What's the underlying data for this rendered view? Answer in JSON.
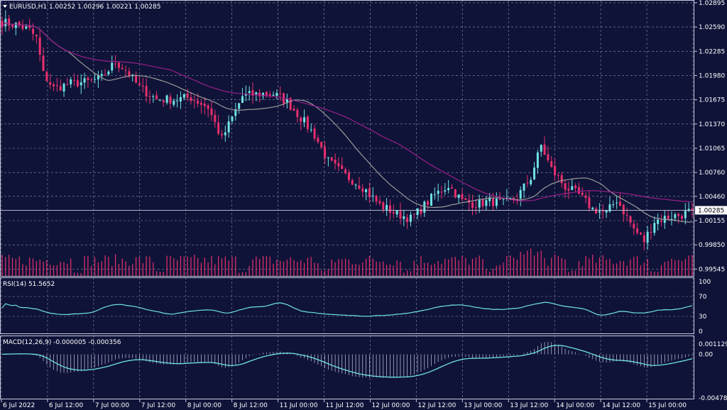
{
  "colors": {
    "background": "#0f1338",
    "grid": "#8a8fb0",
    "frame": "#c8cbe0",
    "bull": "#6fe3e3",
    "bear": "#e8306d",
    "ma_fast": "#9a9a9a",
    "ma_slow": "#9a1f8a",
    "volume": "#e8306d",
    "indicator": "#6fe3e3",
    "price_line": "#c8cbe0",
    "text": "#ffffff"
  },
  "chart_data": [
    {
      "type": "candlestick",
      "title": "EURUSD,H1  1.00252 1.00296 1.00221 1.00285",
      "current_price_label": "1.00285",
      "current_price": 1.00285,
      "y_ticks": [
        "1.02895",
        "1.02590",
        "1.02285",
        "1.01980",
        "1.01675",
        "1.01370",
        "1.01065",
        "1.00760",
        "1.00460",
        "1.00155",
        "0.99850",
        "0.99545"
      ],
      "ylim": [
        0.9945,
        1.0293
      ],
      "x_labels": [
        "6 Jul 2022",
        "6 Jul 12:00",
        "7 Jul 00:00",
        "7 Jul 12:00",
        "8 Jul 00:00",
        "8 Jul 12:00",
        "11 Jul 00:00",
        "11 Jul 12:00",
        "12 Jul 00:00",
        "12 Jul 12:00",
        "13 Jul 00:00",
        "13 Jul 12:00",
        "14 Jul 00:00",
        "14 Jul 12:00",
        "15 Jul 00:00"
      ],
      "close_anchors": [
        [
          0,
          1.0265
        ],
        [
          4,
          1.0262
        ],
        [
          8,
          1.0255
        ],
        [
          10,
          1.0245
        ],
        [
          12,
          1.02
        ],
        [
          15,
          1.0182
        ],
        [
          20,
          1.0188
        ],
        [
          25,
          1.019
        ],
        [
          29,
          1.0195
        ],
        [
          33,
          1.0215
        ],
        [
          36,
          1.0205
        ],
        [
          40,
          1.0183
        ],
        [
          45,
          1.0168
        ],
        [
          50,
          1.0168
        ],
        [
          55,
          1.017
        ],
        [
          60,
          1.0158
        ],
        [
          64,
          1.0118
        ],
        [
          67,
          1.0145
        ],
        [
          70,
          1.0172
        ],
        [
          75,
          1.0175
        ],
        [
          79,
          1.0175
        ],
        [
          83,
          1.0165
        ],
        [
          87,
          1.0145
        ],
        [
          91,
          1.0123
        ],
        [
          95,
          1.009
        ],
        [
          100,
          1.0072
        ],
        [
          105,
          1.0058
        ],
        [
          110,
          1.0035
        ],
        [
          115,
          1.0024
        ],
        [
          119,
          1.0018
        ],
        [
          122,
          1.003
        ],
        [
          126,
          1.0048
        ],
        [
          130,
          1.006
        ],
        [
          134,
          1.004
        ],
        [
          138,
          1.0036
        ],
        [
          142,
          1.004
        ],
        [
          146,
          1.0037
        ],
        [
          150,
          1.0045
        ],
        [
          154,
          1.007
        ],
        [
          157,
          1.011
        ],
        [
          160,
          1.008
        ],
        [
          164,
          1.0058
        ],
        [
          168,
          1.0048
        ],
        [
          172,
          1.003
        ],
        [
          176,
          1.0025
        ],
        [
          179,
          1.0042
        ],
        [
          182,
          1.002
        ],
        [
          184,
          1.0005
        ],
        [
          187,
          0.999
        ],
        [
          190,
          1.0015
        ],
        [
          194,
          1.002
        ],
        [
          198,
          1.0023
        ],
        [
          201,
          1.0028
        ]
      ],
      "candles_count": 202,
      "sma_fast": {
        "period": 20
      },
      "sma_slow": {
        "period": 50
      },
      "volume_panel": {
        "ylim": [
          0,
          100
        ]
      }
    },
    {
      "type": "line",
      "title": "RSI(14) 51.5652",
      "y_ticks": [
        "100",
        "70",
        "30",
        "0"
      ],
      "ylim": [
        0,
        100
      ],
      "levels": [
        70,
        30
      ]
    },
    {
      "type": "histogram+line",
      "title": "MACD(12,26,9) -0.000005 -0.000356",
      "y_ticks": [
        "0.001129",
        "0.00",
        "-0.004785"
      ],
      "ylim": [
        -0.004785,
        0.001129
      ]
    }
  ]
}
